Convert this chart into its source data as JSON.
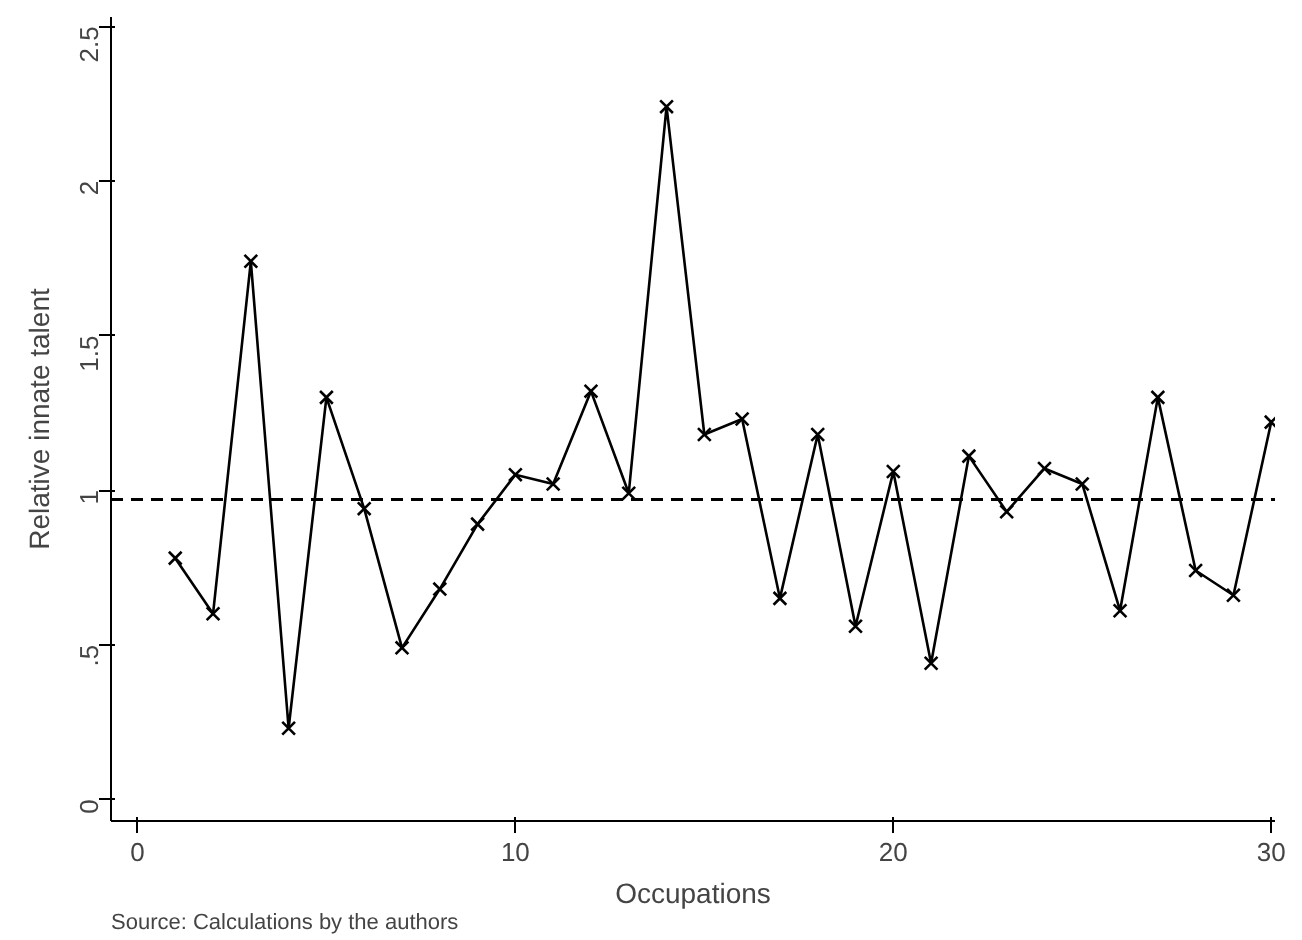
{
  "chart_data": {
    "type": "line",
    "xlabel": "Occupations",
    "ylabel": "Relative innate talent",
    "x": [
      1,
      2,
      3,
      4,
      5,
      6,
      7,
      8,
      9,
      10,
      11,
      12,
      13,
      14,
      15,
      16,
      17,
      18,
      19,
      20,
      21,
      22,
      23,
      24,
      25,
      26,
      27,
      28,
      29,
      30
    ],
    "series": [
      {
        "color": "#000000",
        "values": [
          0.78,
          0.6,
          1.74,
          0.23,
          1.3,
          0.94,
          0.49,
          0.68,
          0.89,
          1.05,
          1.02,
          1.32,
          0.99,
          2.24,
          1.18,
          1.23,
          0.65,
          1.18,
          0.56,
          1.06,
          0.44,
          1.11,
          0.93,
          1.07,
          1.02,
          0.61,
          1.3,
          0.74,
          0.66,
          1.22
        ]
      }
    ],
    "xlim": [
      -0.7,
      30.1
    ],
    "ylim": [
      -0.07,
      2.53
    ],
    "xticks": [
      0,
      10,
      20,
      30
    ],
    "yticks": [
      0,
      {
        "value": 0.5,
        "label": ".5"
      },
      1,
      {
        "value": 1.5,
        "label": "1.5"
      },
      2,
      {
        "value": 2.5,
        "label": "2.5"
      }
    ],
    "ref_lines": [
      {
        "axis": "y",
        "value": 0.97,
        "line_style": "dashed",
        "color": "#000000"
      }
    ],
    "marker": "cross",
    "line_style": "solid",
    "grid": false,
    "annotations": [
      "Source: Calculations by the authors"
    ]
  }
}
